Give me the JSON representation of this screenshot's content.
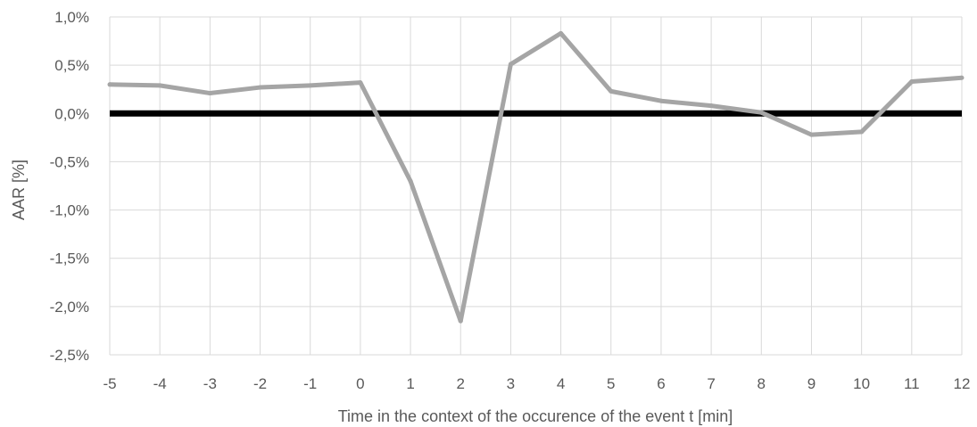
{
  "chart_data": {
    "type": "line",
    "title": "",
    "xlabel": "Time in the context of the occurence of the event t [min]",
    "ylabel": "AAR [%]",
    "x": [
      -5,
      -4,
      -3,
      -2,
      -1,
      0,
      1,
      2,
      3,
      4,
      5,
      6,
      7,
      8,
      9,
      10,
      11,
      12
    ],
    "xticklabels": [
      "-5",
      "-4",
      "-3",
      "-2",
      "-1",
      "0",
      "1",
      "2",
      "3",
      "4",
      "5",
      "6",
      "7",
      "8",
      "9",
      "10",
      "11",
      "12"
    ],
    "yticks": [
      1.0,
      0.5,
      0.0,
      -0.5,
      -1.0,
      -1.5,
      -2.0,
      -2.5
    ],
    "yticklabels": [
      "1,0%",
      "0,5%",
      "0,0%",
      "-0,5%",
      "-1,0%",
      "-1,5%",
      "-2,0%",
      "-2,5%"
    ],
    "ylim": [
      -2.5,
      1.0
    ],
    "xlim": [
      -5,
      12
    ],
    "grid": true,
    "zero_line": {
      "value": 0.0,
      "color": "#000000"
    },
    "series": [
      {
        "color": "#a5a5a5",
        "values": [
          0.3,
          0.29,
          0.21,
          0.27,
          0.29,
          0.32,
          -0.7,
          -2.15,
          0.51,
          0.83,
          0.23,
          0.13,
          0.08,
          0.01,
          -0.22,
          -0.19,
          0.33,
          0.37
        ]
      }
    ]
  }
}
